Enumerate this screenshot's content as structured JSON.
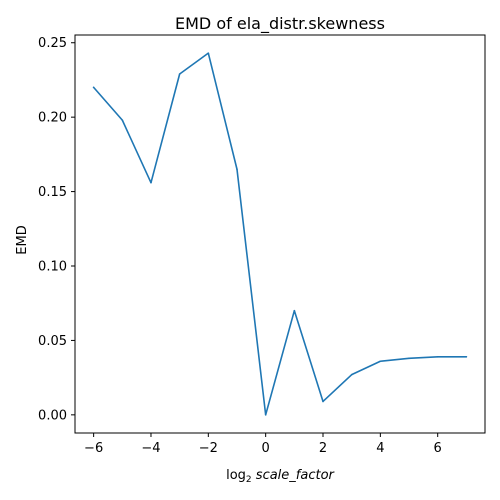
{
  "chart_data": {
    "type": "line",
    "title": "EMD of ela_distr.skewness",
    "xlabel_prefix": "log",
    "xlabel_subscript": "2",
    "xlabel_var": "scale_factor",
    "ylabel": "EMD",
    "xlim": [
      -6.65,
      7.65
    ],
    "ylim": [
      -0.0122,
      0.2552
    ],
    "xticks": [
      -6,
      -4,
      -2,
      0,
      2,
      4,
      6
    ],
    "xtick_labels": [
      "−6",
      "−4",
      "−2",
      "0",
      "2",
      "4",
      "6"
    ],
    "yticks": [
      0.0,
      0.05,
      0.1,
      0.15,
      0.2,
      0.25
    ],
    "ytick_labels": [
      "0.00",
      "0.05",
      "0.10",
      "0.15",
      "0.20",
      "0.25"
    ],
    "grid": false,
    "series": [
      {
        "color": "#1f77b4",
        "x": [
          -6,
          -5,
          -4,
          -3,
          -2,
          -1,
          0,
          1,
          2,
          3,
          4,
          5,
          6,
          7
        ],
        "y": [
          0.22,
          0.198,
          0.156,
          0.229,
          0.243,
          0.165,
          0.0,
          0.07,
          0.009,
          0.027,
          0.036,
          0.038,
          0.039,
          0.039
        ]
      }
    ]
  }
}
